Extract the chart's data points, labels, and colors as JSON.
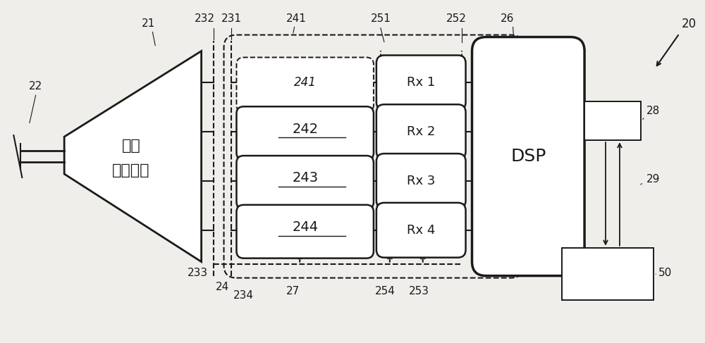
{
  "bg_color": "#f0eeeb",
  "line_color": "#1a1a1a",
  "fig_width": 10.0,
  "fig_height": 4.87,
  "dpi": 100,
  "label_20": "20",
  "label_21": "21",
  "label_22": "22",
  "label_24": "24",
  "label_26": "26",
  "label_27": "27",
  "label_28": "28",
  "label_29": "29",
  "label_50": "50",
  "label_231": "231",
  "label_232": "232",
  "label_233": "233",
  "label_234": "234",
  "label_241": "241",
  "label_242": "242",
  "label_243": "243",
  "label_244": "244",
  "label_251": "251",
  "label_252": "252",
  "label_253": "253",
  "label_254": "254",
  "mux_text_line1": "模式",
  "mux_text_line2": "解复用器",
  "dsp_text": "DSP",
  "rx1_text": "Rx 1",
  "rx2_text": "Rx 2",
  "rx3_text": "Rx 3",
  "rx4_text": "Rx 4"
}
